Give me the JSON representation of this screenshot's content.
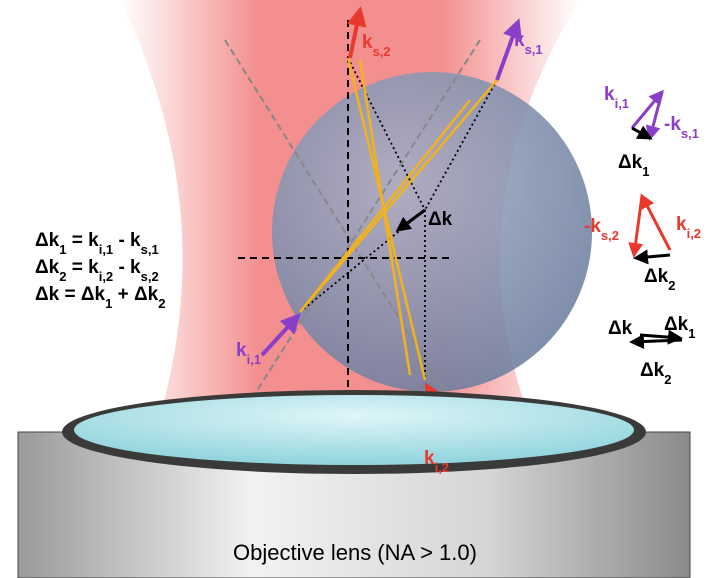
{
  "diagram_labels": [
    {
      "text": "k",
      "sub": "s,2"
    },
    {
      "text": "k",
      "sub": "s,1"
    },
    {
      "text": "Δk"
    },
    {
      "text": "k",
      "sub": "i,1"
    },
    {
      "text": "k",
      "sub": "i,2"
    }
  ],
  "equations": [
    [
      {
        "text": "Δk",
        "sub": "1"
      },
      {
        "text": " = k",
        "sub": "i,1"
      },
      {
        "text": " - k",
        "sub": "s,1"
      }
    ],
    [
      {
        "text": "Δk",
        "sub": "2"
      },
      {
        "text": " = k",
        "sub": "i,2"
      },
      {
        "text": " - k",
        "sub": "s,2"
      }
    ],
    [
      {
        "text": "Δk = Δk",
        "sub": "1"
      },
      {
        "text": " + Δk",
        "sub": "2"
      }
    ]
  ],
  "vector_diagrams": [
    {
      "labels": [
        {
          "text": "k",
          "sub": "i,1"
        },
        {
          "text": "-k",
          "sub": "s,1"
        },
        {
          "text": "Δk",
          "sub": "1"
        }
      ]
    },
    {
      "labels": [
        {
          "text": "-k",
          "sub": "s,2"
        },
        {
          "text": "k",
          "sub": "i,2"
        },
        {
          "text": "Δk",
          "sub": "2"
        }
      ]
    },
    {
      "labels": [
        {
          "text": "Δk"
        },
        {
          "text": "Δk",
          "sub": "1"
        },
        {
          "text": "Δk",
          "sub": "2"
        }
      ]
    }
  ],
  "lens_label": "Objective lens (NA > 1.0)"
}
